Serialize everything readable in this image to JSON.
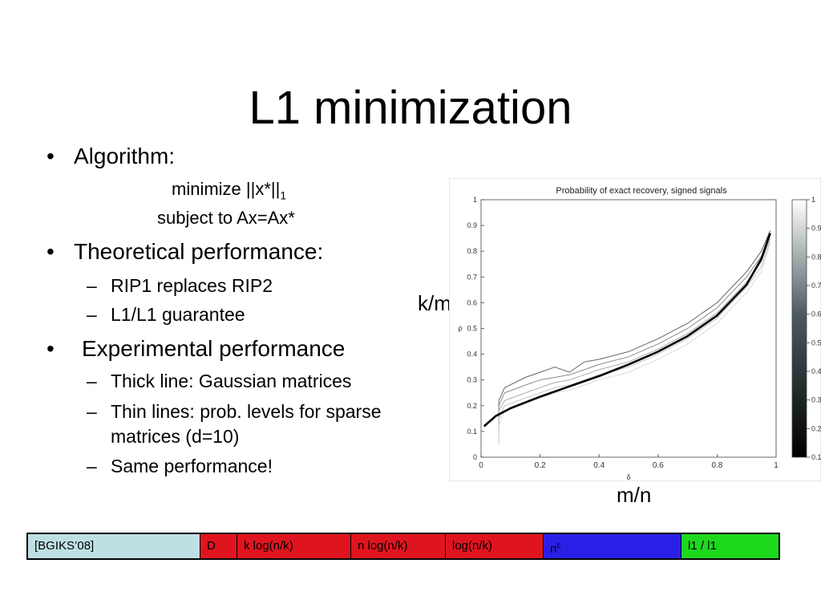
{
  "slide": {
    "title": "L1 minimization",
    "bullets": [
      {
        "text": "Algorithm:"
      },
      {
        "text": "Theoretical performance:"
      },
      {
        "text": "Experimental performance"
      }
    ],
    "algorithm": {
      "line1_prefix": "minimize ||x*||",
      "line1_subscript": "1",
      "line2": "subject to Ax=Ax*"
    },
    "sub_theory": [
      "RIP1 replaces RIP2",
      "L1/L1 guarantee"
    ],
    "sub_experiment": [
      "Thick line: Gaussian matrices",
      "Thin lines: prob. levels for sparse",
      "matrices (d=10)",
      "Same performance!"
    ],
    "bullet_glyph": "•",
    "dash_glyph": "–",
    "figure_labels": {
      "y": "k/m",
      "x": "m/n"
    }
  },
  "chart_data": {
    "type": "line",
    "title": "Probability of exact recovery, signed signals",
    "xlabel": "δ",
    "ylabel": "ρ",
    "xlim": [
      0,
      1
    ],
    "ylim": [
      0,
      1
    ],
    "x_ticks": [
      "0",
      "0.2",
      "0.4",
      "0.6",
      "0.8",
      "1"
    ],
    "y_ticks": [
      "0",
      "0.1",
      "0.2",
      "0.3",
      "0.4",
      "0.5",
      "0.6",
      "0.7",
      "0.8",
      "0.9",
      "1"
    ],
    "grid": false,
    "colorbar": {
      "ticks": [
        "0.1",
        "0.2",
        "0.3",
        "0.4",
        "0.5",
        "0.6",
        "0.7",
        "0.8",
        "0.9",
        "1"
      ],
      "colormap": "gray"
    },
    "series": [
      {
        "style": "thick",
        "color": "#000000",
        "x": [
          0.01,
          0.05,
          0.1,
          0.2,
          0.3,
          0.4,
          0.5,
          0.6,
          0.7,
          0.8,
          0.9,
          0.95,
          0.98
        ],
        "y": [
          0.12,
          0.16,
          0.19,
          0.235,
          0.275,
          0.315,
          0.36,
          0.41,
          0.47,
          0.55,
          0.67,
          0.77,
          0.87
        ]
      },
      {
        "style": "thin",
        "level": 0.9,
        "color": "#666666",
        "x": [
          0.06,
          0.08,
          0.15,
          0.2,
          0.25,
          0.3,
          0.35,
          0.4,
          0.5,
          0.6,
          0.7,
          0.8,
          0.9,
          0.95,
          0.98
        ],
        "y": [
          0.22,
          0.27,
          0.31,
          0.33,
          0.35,
          0.33,
          0.37,
          0.38,
          0.41,
          0.46,
          0.52,
          0.6,
          0.72,
          0.8,
          0.88
        ]
      },
      {
        "style": "thin",
        "level": 0.7,
        "color": "#8a8a8a",
        "x": [
          0.06,
          0.08,
          0.15,
          0.2,
          0.25,
          0.3,
          0.35,
          0.4,
          0.5,
          0.6,
          0.7,
          0.8,
          0.9,
          0.95,
          0.98
        ],
        "y": [
          0.2,
          0.25,
          0.28,
          0.3,
          0.31,
          0.32,
          0.34,
          0.36,
          0.39,
          0.44,
          0.5,
          0.58,
          0.7,
          0.78,
          0.86
        ]
      },
      {
        "style": "thin",
        "level": 0.5,
        "color": "#a8a8a8",
        "x": [
          0.06,
          0.08,
          0.15,
          0.2,
          0.25,
          0.3,
          0.35,
          0.4,
          0.5,
          0.6,
          0.7,
          0.8,
          0.9,
          0.95,
          0.98
        ],
        "y": [
          0.18,
          0.22,
          0.25,
          0.27,
          0.29,
          0.3,
          0.32,
          0.34,
          0.37,
          0.42,
          0.48,
          0.56,
          0.68,
          0.76,
          0.85
        ]
      },
      {
        "style": "thin",
        "level": 0.3,
        "color": "#c4c4c4",
        "x": [
          0.06,
          0.08,
          0.15,
          0.2,
          0.25,
          0.3,
          0.35,
          0.4,
          0.5,
          0.6,
          0.7,
          0.8,
          0.9,
          0.95,
          0.98
        ],
        "y": [
          0.15,
          0.2,
          0.23,
          0.25,
          0.27,
          0.28,
          0.3,
          0.32,
          0.35,
          0.4,
          0.46,
          0.54,
          0.66,
          0.74,
          0.84
        ]
      },
      {
        "style": "thin",
        "level": 0.1,
        "color": "#dcdcdc",
        "x": [
          0.06,
          0.08,
          0.15,
          0.2,
          0.25,
          0.3,
          0.35,
          0.4,
          0.5,
          0.6,
          0.7,
          0.8,
          0.9,
          0.95,
          0.98
        ],
        "y": [
          0.12,
          0.18,
          0.21,
          0.23,
          0.25,
          0.26,
          0.28,
          0.3,
          0.33,
          0.38,
          0.44,
          0.52,
          0.64,
          0.72,
          0.83
        ]
      }
    ]
  },
  "table": {
    "cells": [
      {
        "text": "[BGIKS’08]",
        "bg": "#bfe0e3",
        "color": "#000000"
      },
      {
        "text": "D",
        "bg": "#e0141f",
        "color": "#000000"
      },
      {
        "text": "k log(n/k)",
        "bg": "#e0141f",
        "color": "#000000"
      },
      {
        "text": "n log(n/k)",
        "bg": "#e0141f",
        "color": "#000000"
      },
      {
        "text": "log(n/k)",
        "bg": "#e0141f",
        "color": "#000000"
      },
      {
        "text": "n",
        "sup": "c",
        "bg": "#2a1fe6",
        "color": "#000000"
      },
      {
        "text": "l1 / l1",
        "bg": "#1ed81e",
        "color": "#000000"
      }
    ]
  }
}
